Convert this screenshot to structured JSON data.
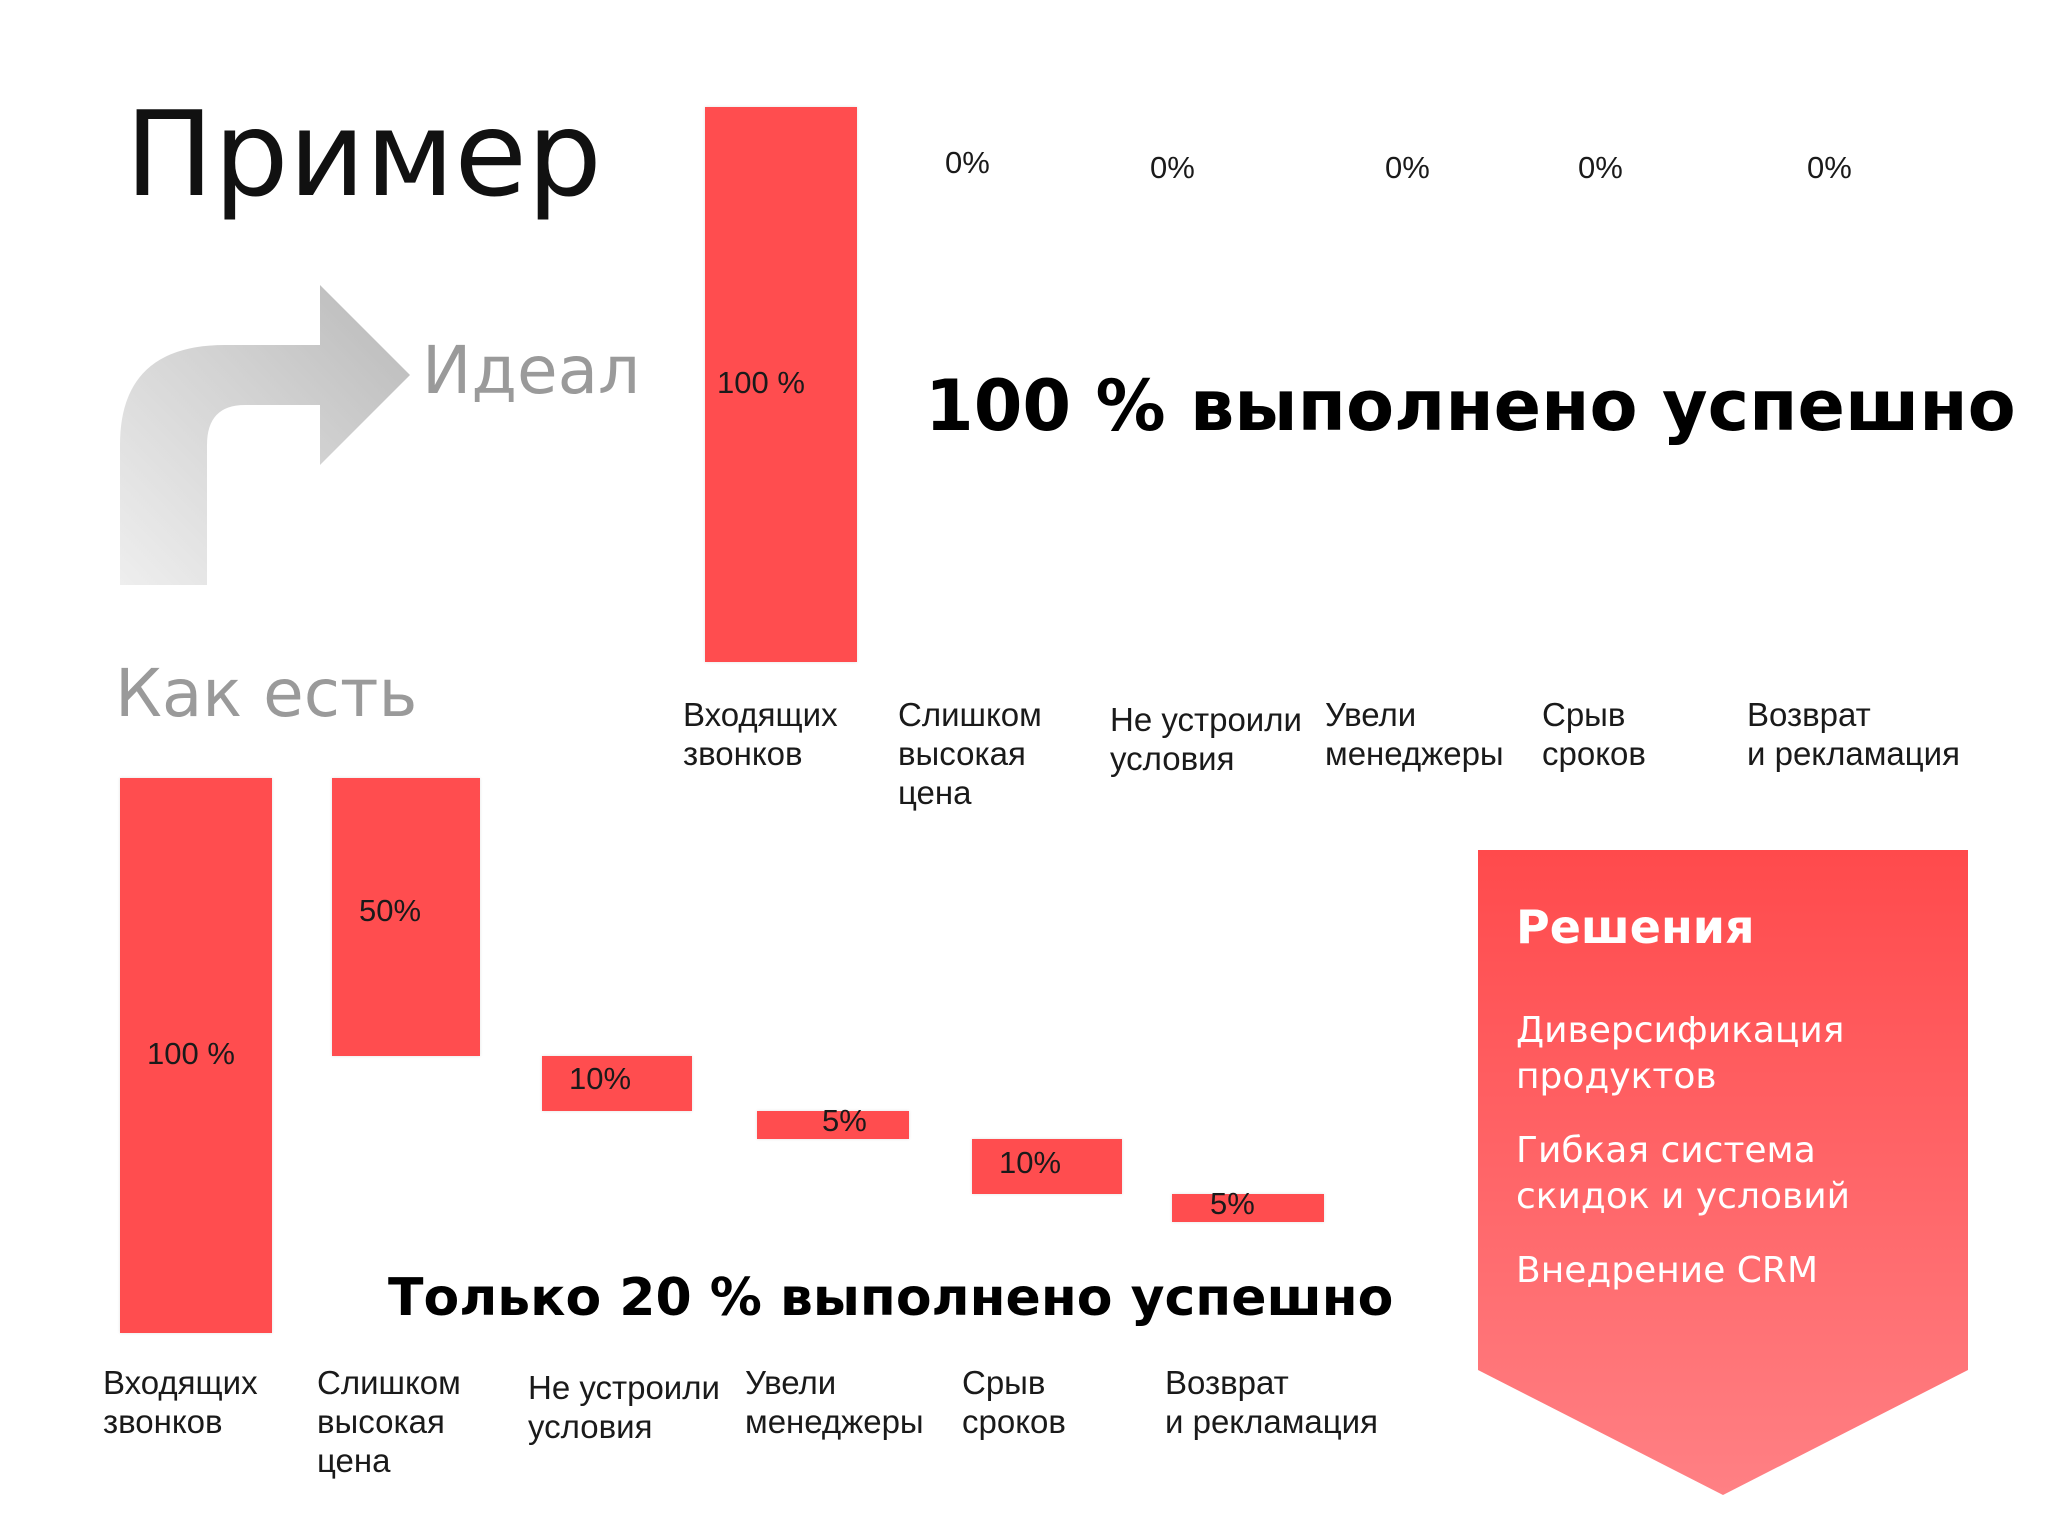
{
  "title": "Пример",
  "ideal_label": "Идеал",
  "asis_label": "Как есть",
  "colors": {
    "bar": "#ff4d4f",
    "arrow": "#d0d0d0",
    "panel_top": "#ff4a4c",
    "panel_bottom": "#ff8084"
  },
  "chart_data": [
    {
      "type": "bar",
      "variant": "waterfall",
      "panel": "ideal",
      "categories": [
        "Входящих\nзвонков",
        "Слишком\nвысокая\nцена",
        "Не устроили\nусловия",
        "Увели\nменеджеры",
        "Срыв\nсроков",
        "Возврат\nи рекламация"
      ],
      "values": [
        100,
        0,
        0,
        0,
        0,
        0
      ],
      "value_labels": [
        "100 %",
        "0%",
        "0%",
        "0%",
        "0%",
        "0%"
      ],
      "title": "100 % выполнено успешно",
      "ylim": [
        0,
        100
      ]
    },
    {
      "type": "bar",
      "variant": "waterfall",
      "panel": "asis",
      "categories": [
        "Входящих\nзвонков",
        "Слишком\nвысокая\nцена",
        "Не устроили\nусловия",
        "Увели\nменеджеры",
        "Срыв\nсроков",
        "Возврат\nи рекламация"
      ],
      "values": [
        100,
        50,
        10,
        5,
        10,
        5
      ],
      "value_labels": [
        "100 %",
        "50%",
        "10%",
        "5%",
        "10%",
        "5%"
      ],
      "title": "Только 20 % выполнено успешно",
      "ylim": [
        0,
        100
      ]
    }
  ],
  "solutions": {
    "heading": "Решения",
    "items": [
      "Диверсификация\nпродуктов",
      "Гибкая система\nскидок и условий",
      "Внедрение CRM"
    ]
  }
}
